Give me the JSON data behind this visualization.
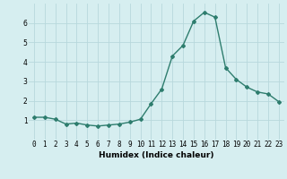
{
  "x": [
    0,
    1,
    2,
    3,
    4,
    5,
    6,
    7,
    8,
    9,
    10,
    11,
    12,
    13,
    14,
    15,
    16,
    17,
    18,
    19,
    20,
    21,
    22,
    23
  ],
  "y": [
    1.15,
    1.15,
    1.05,
    0.8,
    0.85,
    0.75,
    0.7,
    0.75,
    0.8,
    0.9,
    1.05,
    1.85,
    2.6,
    4.3,
    4.85,
    6.1,
    6.55,
    6.3,
    3.7,
    3.1,
    2.7,
    2.45,
    2.35,
    1.95
  ],
  "line_color": "#2e7d6e",
  "marker": "D",
  "markersize": 2.0,
  "linewidth": 1.0,
  "xlabel": "Humidex (Indice chaleur)",
  "xlim": [
    -0.5,
    23.5
  ],
  "ylim": [
    0,
    7
  ],
  "yticks": [
    1,
    2,
    3,
    4,
    5,
    6
  ],
  "xticks": [
    0,
    1,
    2,
    3,
    4,
    5,
    6,
    7,
    8,
    9,
    10,
    11,
    12,
    13,
    14,
    15,
    16,
    17,
    18,
    19,
    20,
    21,
    22,
    23
  ],
  "bg_color": "#d6eef0",
  "grid_color": "#b8d8dc",
  "tick_fontsize": 5.5,
  "xlabel_fontsize": 6.5,
  "xlabel_bold": true
}
